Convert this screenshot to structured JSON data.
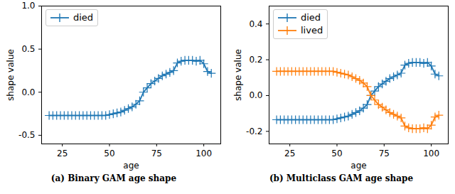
{
  "chart_data": [
    {
      "type": "line",
      "caption": "(a) Binary GAM age shape",
      "x_label": "age",
      "y_label": "shape value",
      "x": [
        18,
        20,
        22,
        24,
        26,
        28,
        30,
        32,
        34,
        36,
        38,
        40,
        42,
        44,
        46,
        48,
        50,
        52,
        54,
        56,
        58,
        60,
        62,
        64,
        66,
        68,
        70,
        72,
        74,
        76,
        78,
        80,
        82,
        84,
        86,
        88,
        90,
        92,
        94,
        96,
        98,
        100,
        102,
        104
      ],
      "series": [
        {
          "name": "died",
          "color": "#1f77b4",
          "marker": "plus",
          "values": [
            -0.27,
            -0.27,
            -0.27,
            -0.27,
            -0.27,
            -0.27,
            -0.27,
            -0.27,
            -0.27,
            -0.27,
            -0.27,
            -0.27,
            -0.27,
            -0.27,
            -0.27,
            -0.27,
            -0.26,
            -0.25,
            -0.24,
            -0.23,
            -0.21,
            -0.19,
            -0.17,
            -0.14,
            -0.1,
            0.0,
            0.05,
            0.1,
            0.13,
            0.16,
            0.19,
            0.21,
            0.23,
            0.25,
            0.34,
            0.36,
            0.37,
            0.37,
            0.37,
            0.36,
            0.37,
            0.33,
            0.24,
            0.22
          ]
        }
      ],
      "xlim": [
        14,
        109
      ],
      "xticks": [
        25,
        50,
        75,
        100
      ],
      "ylim": [
        -0.6,
        1.0
      ],
      "yticks": [
        -0.5,
        {
          "value": 0,
          "label": "0.0"
        },
        0.5,
        {
          "value": 1,
          "label": "1.0"
        }
      ],
      "legend": "upper left",
      "grid": false
    },
    {
      "type": "line",
      "caption": "(b) Multiclass GAM age shape",
      "x_label": "age",
      "y_label": "shape value",
      "x": [
        18,
        20,
        22,
        24,
        26,
        28,
        30,
        32,
        34,
        36,
        38,
        40,
        42,
        44,
        46,
        48,
        50,
        52,
        54,
        56,
        58,
        60,
        62,
        64,
        66,
        68,
        70,
        72,
        74,
        76,
        78,
        80,
        82,
        84,
        86,
        88,
        90,
        92,
        94,
        96,
        98,
        100,
        102,
        104
      ],
      "series": [
        {
          "name": "died",
          "color": "#1f77b4",
          "marker": "plus",
          "values": [
            -0.135,
            -0.135,
            -0.135,
            -0.135,
            -0.135,
            -0.135,
            -0.135,
            -0.135,
            -0.135,
            -0.135,
            -0.135,
            -0.135,
            -0.135,
            -0.135,
            -0.135,
            -0.135,
            -0.13,
            -0.125,
            -0.12,
            -0.115,
            -0.105,
            -0.095,
            -0.085,
            -0.07,
            -0.05,
            0.0,
            0.025,
            0.05,
            0.065,
            0.08,
            0.095,
            0.105,
            0.115,
            0.125,
            0.17,
            0.18,
            0.185,
            0.185,
            0.185,
            0.18,
            0.185,
            0.165,
            0.12,
            0.11
          ]
        },
        {
          "name": "lived",
          "color": "#ff7f0e",
          "marker": "plus",
          "values": [
            0.135,
            0.135,
            0.135,
            0.135,
            0.135,
            0.135,
            0.135,
            0.135,
            0.135,
            0.135,
            0.135,
            0.135,
            0.135,
            0.135,
            0.135,
            0.135,
            0.13,
            0.125,
            0.12,
            0.115,
            0.105,
            0.095,
            0.085,
            0.07,
            0.05,
            0.0,
            -0.025,
            -0.05,
            -0.065,
            -0.08,
            -0.095,
            -0.105,
            -0.115,
            -0.125,
            -0.17,
            -0.18,
            -0.185,
            -0.185,
            -0.185,
            -0.18,
            -0.185,
            -0.165,
            -0.12,
            -0.11
          ]
        }
      ],
      "xlim": [
        14,
        109
      ],
      "xticks": [
        25,
        50,
        75,
        100
      ],
      "ylim": [
        -0.27,
        0.5
      ],
      "yticks": [
        -0.2,
        {
          "value": 0,
          "label": "0.0"
        },
        0.2,
        0.4
      ],
      "legend": "upper left",
      "grid": false
    }
  ]
}
